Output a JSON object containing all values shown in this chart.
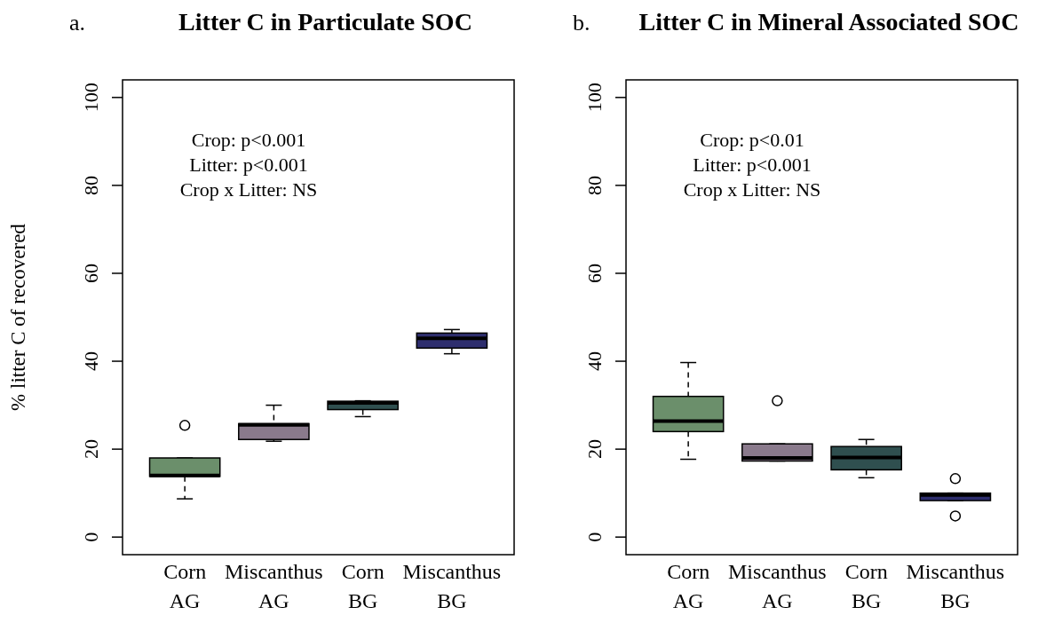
{
  "chart_data": [
    {
      "type": "box",
      "title": "Litter C in Particulate SOC",
      "ylabel": "% litter C of recovered",
      "annotations": [
        "a.",
        "Crop: p<0.001",
        "Litter: p<0.001",
        "Crop x Litter: NS"
      ],
      "categories": [
        "Corn\nAG",
        "Miscanthus\nAG",
        "Corn\nBG",
        "Miscanthus\nBG"
      ],
      "colors": [
        "#6b8f6b",
        "#8a7a8c",
        "#2f4f4f",
        "#2e2e6e"
      ],
      "ylim": [
        -4,
        104
      ],
      "yticks": [
        0,
        20,
        40,
        60,
        80,
        100
      ],
      "boxes": [
        {
          "low": 8.7,
          "q1": 13.8,
          "median": 14,
          "q3": 18,
          "high": 18,
          "outliers": [
            25.4
          ]
        },
        {
          "low": 21.8,
          "q1": 22.2,
          "median": 25.5,
          "q3": 25.8,
          "high": 30
        },
        {
          "low": 27.4,
          "q1": 29,
          "median": 30.5,
          "q3": 30.9,
          "high": 31
        },
        {
          "low": 41.7,
          "q1": 43,
          "median": 45.2,
          "q3": 46.4,
          "high": 47.2
        }
      ]
    },
    {
      "type": "box",
      "title": "Litter C in Mineral Associated SOC",
      "annotations": [
        "b.",
        "Crop: p<0.01",
        "Litter: p<0.001",
        "Crop x Litter: NS"
      ],
      "categories": [
        "Corn\nAG",
        "Miscanthus\nAG",
        "Corn\nBG",
        "Miscanthus\nBG"
      ],
      "colors": [
        "#6b8f6b",
        "#8a7a8c",
        "#2f4f4f",
        "#2e2e6e"
      ],
      "ylim": [
        -4,
        104
      ],
      "yticks": [
        0,
        20,
        40,
        60,
        80,
        100
      ],
      "boxes": [
        {
          "low": 17.7,
          "q1": 24,
          "median": 26.4,
          "q3": 32,
          "high": 39.7
        },
        {
          "low": 17.3,
          "q1": 17.3,
          "median": 18,
          "q3": 21.2,
          "high": 21.2,
          "outliers": [
            31
          ]
        },
        {
          "low": 13.5,
          "q1": 15.3,
          "median": 18.1,
          "q3": 20.6,
          "high": 22.2
        },
        {
          "low": 8.3,
          "q1": 8.3,
          "median": 9.6,
          "q3": 10,
          "high": 10,
          "outliers": [
            13.3,
            4.8
          ]
        }
      ]
    }
  ]
}
